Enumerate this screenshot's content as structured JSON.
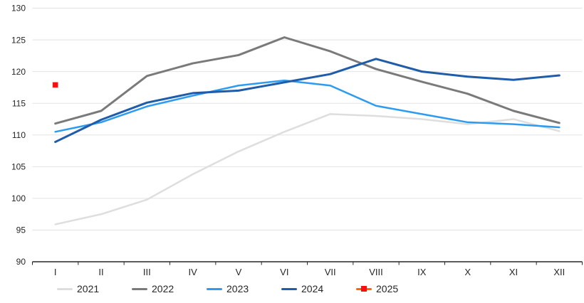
{
  "chart_data": {
    "type": "line",
    "title": "",
    "categories": [
      "I",
      "II",
      "III",
      "IV",
      "V",
      "VI",
      "VII",
      "VIII",
      "IX",
      "X",
      "XI",
      "XII"
    ],
    "ylim": [
      90,
      130
    ],
    "y_ticks": [
      90,
      95,
      100,
      105,
      110,
      115,
      120,
      125,
      130
    ],
    "grid": true,
    "legend_position": "bottom",
    "series": [
      {
        "name": "2021",
        "color": "#dedede",
        "values": [
          95.9,
          97.5,
          99.8,
          103.8,
          107.4,
          110.5,
          113.3,
          113.0,
          112.5,
          111.7,
          112.5,
          110.6
        ]
      },
      {
        "name": "2022",
        "color": "#7a7a7a",
        "values": [
          111.8,
          113.8,
          119.3,
          121.3,
          122.6,
          125.4,
          123.2,
          120.4,
          118.4,
          116.5,
          113.8,
          111.9
        ]
      },
      {
        "name": "2023",
        "color": "#2d9bf0",
        "values": [
          110.5,
          112.0,
          114.5,
          116.2,
          117.8,
          118.6,
          117.8,
          114.6,
          113.3,
          112.0,
          111.7,
          111.2
        ]
      },
      {
        "name": "2024",
        "color": "#1f5ca9",
        "values": [
          108.9,
          112.4,
          115.1,
          116.6,
          117.0,
          118.3,
          119.6,
          122.0,
          120.0,
          119.2,
          118.7,
          119.4
        ]
      },
      {
        "name": "2025",
        "type": "marker",
        "color": "#fb0e0e",
        "legend_line_color": "#ff6900",
        "values": [
          117.9,
          null,
          null,
          null,
          null,
          null,
          null,
          null,
          null,
          null,
          null,
          null
        ]
      }
    ],
    "colors": {
      "gridline": "#e3e3e3",
      "axis": "#262626",
      "text": "#262626",
      "background": "#ffffff"
    }
  }
}
